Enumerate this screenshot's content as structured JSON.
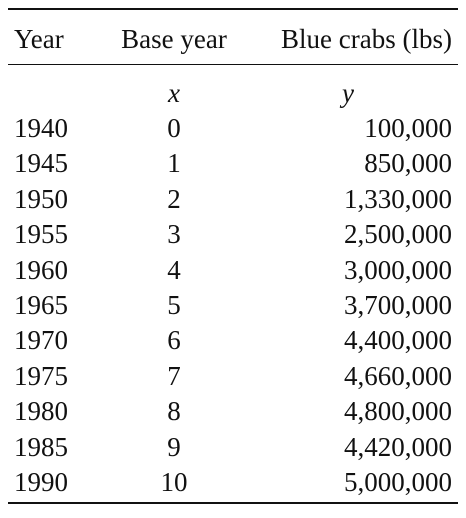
{
  "table": {
    "headers": {
      "year": "Year",
      "base_year": "Base year",
      "blue_crabs": "Blue crabs (lbs)"
    },
    "variables": {
      "x": "x",
      "y": "y"
    },
    "rows": [
      {
        "year": "1940",
        "base": "0",
        "crabs": "100,000"
      },
      {
        "year": "1945",
        "base": "1",
        "crabs": "850,000"
      },
      {
        "year": "1950",
        "base": "2",
        "crabs": "1,330,000"
      },
      {
        "year": "1955",
        "base": "3",
        "crabs": "2,500,000"
      },
      {
        "year": "1960",
        "base": "4",
        "crabs": "3,000,000"
      },
      {
        "year": "1965",
        "base": "5",
        "crabs": "3,700,000"
      },
      {
        "year": "1970",
        "base": "6",
        "crabs": "4,400,000"
      },
      {
        "year": "1975",
        "base": "7",
        "crabs": "4,660,000"
      },
      {
        "year": "1980",
        "base": "8",
        "crabs": "4,800,000"
      },
      {
        "year": "1985",
        "base": "9",
        "crabs": "4,420,000"
      },
      {
        "year": "1990",
        "base": "10",
        "crabs": "5,000,000"
      }
    ]
  }
}
